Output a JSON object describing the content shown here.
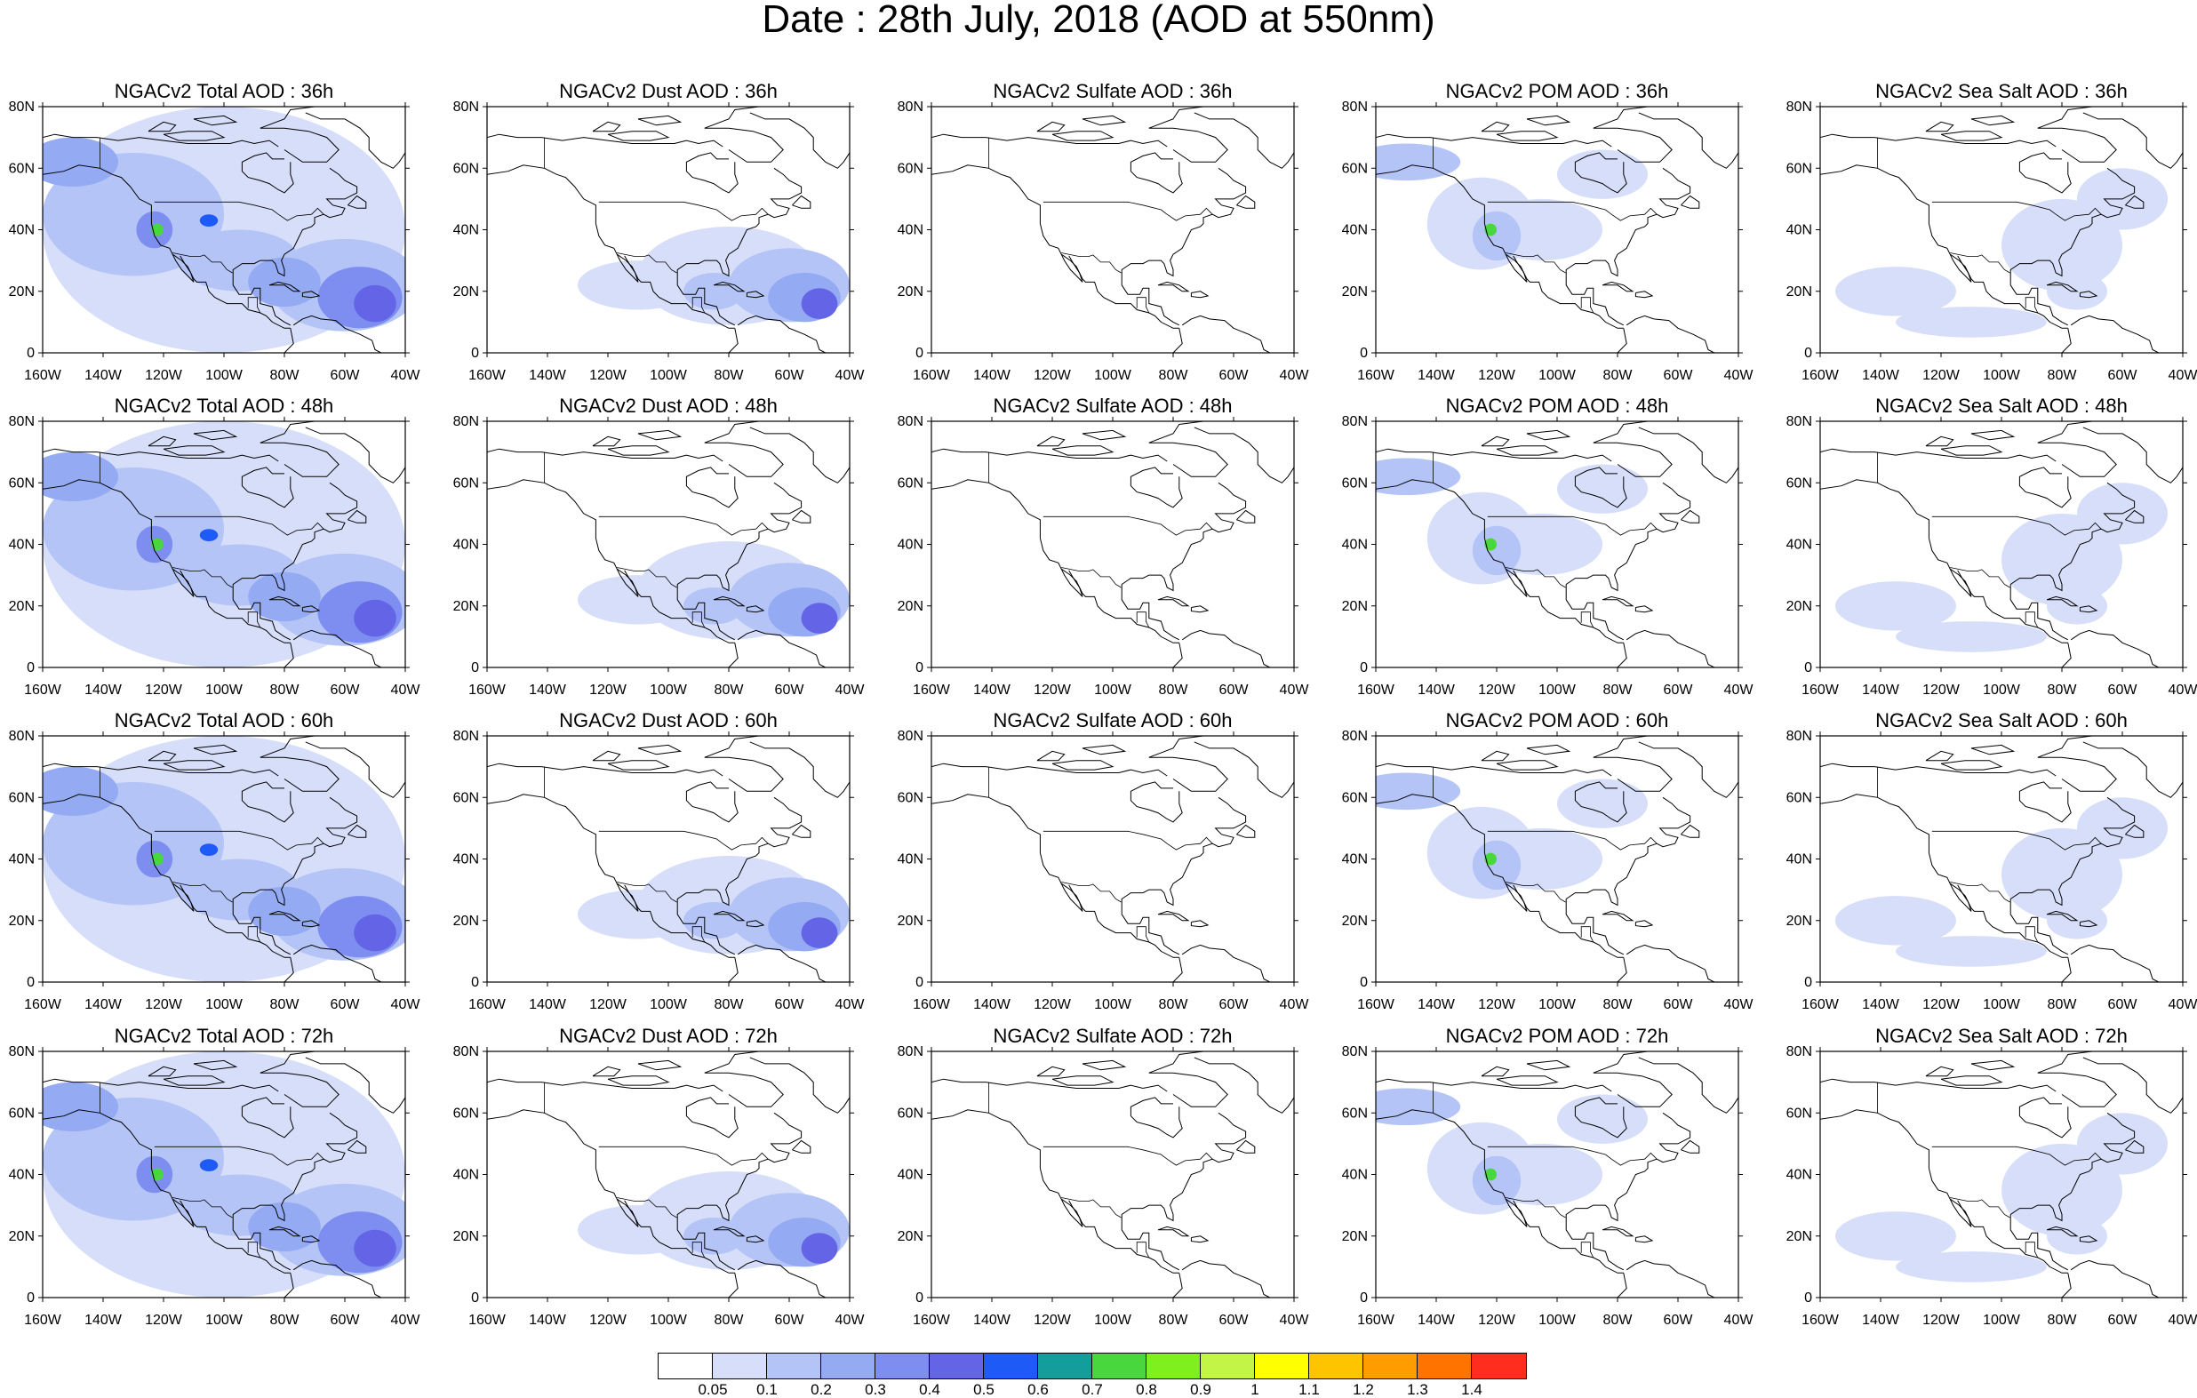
{
  "title": "Date : 28th July, 2018 (AOD at 550nm)",
  "panels": [
    {
      "title": "NGACv2 Total AOD : 36h",
      "kind": "total"
    },
    {
      "title": "NGACv2 Dust AOD : 36h",
      "kind": "dust"
    },
    {
      "title": "NGACv2 Sulfate AOD : 36h",
      "kind": "sulfate"
    },
    {
      "title": "NGACv2 POM AOD : 36h",
      "kind": "pom"
    },
    {
      "title": "NGACv2 Sea Salt AOD : 36h",
      "kind": "seasalt"
    },
    {
      "title": "NGACv2 Total AOD : 48h",
      "kind": "total"
    },
    {
      "title": "NGACv2 Dust AOD : 48h",
      "kind": "dust"
    },
    {
      "title": "NGACv2 Sulfate AOD : 48h",
      "kind": "sulfate"
    },
    {
      "title": "NGACv2 POM AOD : 48h",
      "kind": "pom"
    },
    {
      "title": "NGACv2 Sea Salt AOD : 48h",
      "kind": "seasalt"
    },
    {
      "title": "NGACv2 Total AOD : 60h",
      "kind": "total"
    },
    {
      "title": "NGACv2 Dust AOD : 60h",
      "kind": "dust"
    },
    {
      "title": "NGACv2 Sulfate AOD : 60h",
      "kind": "sulfate"
    },
    {
      "title": "NGACv2 POM AOD : 60h",
      "kind": "pom"
    },
    {
      "title": "NGACv2 Sea Salt AOD : 60h",
      "kind": "seasalt"
    },
    {
      "title": "NGACv2 Total AOD : 72h",
      "kind": "total"
    },
    {
      "title": "NGACv2 Dust AOD : 72h",
      "kind": "dust"
    },
    {
      "title": "NGACv2 Sulfate AOD : 72h",
      "kind": "sulfate"
    },
    {
      "title": "NGACv2 POM AOD : 72h",
      "kind": "pom"
    },
    {
      "title": "NGACv2 Sea Salt  AOD : 72h",
      "kind": "seasalt"
    }
  ],
  "lat_labels": [
    "80N",
    "60N",
    "40N",
    "20N",
    "0"
  ],
  "lon_labels": [
    "160W",
    "140W",
    "120W",
    "100W",
    "80W",
    "60W",
    "40W"
  ],
  "colorbar": {
    "colors": [
      "#ffffff",
      "#d6defa",
      "#b4c4f7",
      "#94aaf2",
      "#7e8ef0",
      "#6464e6",
      "#1e5af5",
      "#139d9d",
      "#48d73c",
      "#7df01e",
      "#c2f545",
      "#ffff00",
      "#ffc400",
      "#ff9d00",
      "#ff7400",
      "#ff2d1e"
    ],
    "labels": [
      "0.05",
      "0.1",
      "0.2",
      "0.3",
      "0.4",
      "0.5",
      "0.6",
      "0.7",
      "0.8",
      "0.9",
      "1",
      "1.1",
      "1.2",
      "1.3",
      "1.4"
    ]
  }
}
